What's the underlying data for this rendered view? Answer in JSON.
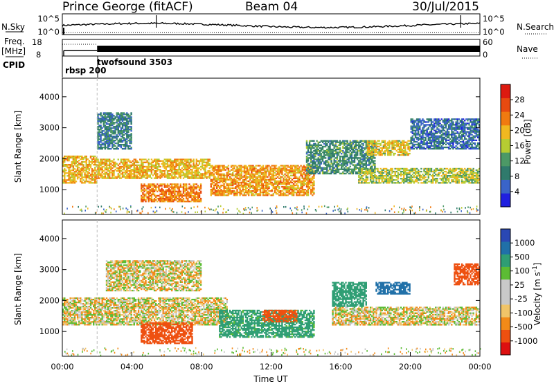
{
  "header": {
    "station": "Prince George (fitACF)",
    "beam": "Beam 04",
    "date": "30/Jul/2015"
  },
  "top_panels": {
    "nsky_label": "N.Sky",
    "nsearch_label": "N.Search",
    "nsky_ticks": [
      "10^5",
      "10^0"
    ],
    "freq_label": "Freq.",
    "freq_unit": "[MHz]",
    "freq_ticks": [
      "18",
      "8"
    ],
    "nave_label": "Nave",
    "nave_ticks": [
      "60",
      "0"
    ],
    "cpid_label": "CPID",
    "cpid_entries": [
      "rbsp 200",
      "twofsound 3503"
    ]
  },
  "colors": {
    "power": [
      "#2020e0",
      "#3a64c8",
      "#2f7a6c",
      "#4c9966",
      "#b6cc32",
      "#f0b820",
      "#f07a10",
      "#e84a10",
      "#dd1a10"
    ],
    "velocity": [
      "#dd1010",
      "#ee5010",
      "#f28a18",
      "#f0c468",
      "#c8c8c8",
      "#c8c8c8",
      "#5cbc34",
      "#2f9e74",
      "#2070a8",
      "#2a48b4"
    ]
  },
  "chart_data": [
    {
      "type": "heatmap",
      "quantity": "power",
      "xlabel": "",
      "ylabel": "Slant Range [km]",
      "ylim": [
        200,
        4600
      ],
      "yticks": [
        "4000",
        "3000",
        "2000",
        "1000"
      ],
      "colorbar_label": "Power [dB]",
      "colorbar_ticks": [
        "28",
        "24",
        "20",
        "16",
        "12",
        "8",
        "4"
      ],
      "colorbar_range": [
        0,
        32
      ],
      "echo_bands": [
        {
          "t0": 0.0,
          "t1": 2.0,
          "r0": 1200,
          "r1": 2100,
          "level": 22
        },
        {
          "t0": 2.0,
          "t1": 8.5,
          "r0": 1350,
          "r1": 2000,
          "level": 22
        },
        {
          "t0": 4.5,
          "t1": 8.0,
          "r0": 600,
          "r1": 1200,
          "level": 26
        },
        {
          "t0": 2.0,
          "t1": 4.0,
          "r0": 2300,
          "r1": 3500,
          "level": 10
        },
        {
          "t0": 8.5,
          "t1": 14.5,
          "r0": 800,
          "r1": 1800,
          "level": 24
        },
        {
          "t0": 14.0,
          "t1": 18.0,
          "r0": 1500,
          "r1": 2600,
          "level": 12
        },
        {
          "t0": 17.5,
          "t1": 20.0,
          "r0": 2100,
          "r1": 2600,
          "level": 20
        },
        {
          "t0": 17.0,
          "t1": 24.0,
          "r0": 1200,
          "r1": 1700,
          "level": 18
        },
        {
          "t0": 20.0,
          "t1": 24.0,
          "r0": 2300,
          "r1": 3300,
          "level": 8
        }
      ]
    },
    {
      "type": "heatmap",
      "quantity": "velocity",
      "xlabel": "Time UT",
      "ylabel": "Slant Range [km]",
      "ylim": [
        200,
        4600
      ],
      "yticks": [
        "4000",
        "3000",
        "2000",
        "1000"
      ],
      "xticks": [
        "00:00",
        "04:00",
        "08:00",
        "12:00",
        "16:00",
        "20:00",
        "00:00"
      ],
      "xlim_hours": [
        0,
        24
      ],
      "colorbar_label": "Velocity [m s^-1]",
      "colorbar_ticks": [
        "1000",
        "500",
        "100",
        "25",
        "-25",
        "-100",
        "-500",
        "-1000"
      ],
      "echo_bands": [
        {
          "t0": 0.0,
          "t1": 9.5,
          "r0": 1200,
          "r1": 2100,
          "level": 0
        },
        {
          "t0": 2.5,
          "t1": 8.0,
          "r0": 2300,
          "r1": 3300,
          "level": 0
        },
        {
          "t0": 4.5,
          "t1": 7.5,
          "r0": 600,
          "r1": 1300,
          "level": -300
        },
        {
          "t0": 9.0,
          "t1": 14.5,
          "r0": 800,
          "r1": 1700,
          "level": 150
        },
        {
          "t0": 11.5,
          "t1": 13.5,
          "r0": 1300,
          "r1": 1700,
          "level": -150
        },
        {
          "t0": 15.5,
          "t1": 24.0,
          "r0": 1200,
          "r1": 1800,
          "level": 0
        },
        {
          "t0": 18.0,
          "t1": 20.0,
          "r0": 2200,
          "r1": 2600,
          "level": 800
        },
        {
          "t0": 15.5,
          "t1": 17.5,
          "r0": 1800,
          "r1": 2600,
          "level": 300
        },
        {
          "t0": 22.5,
          "t1": 24.0,
          "r0": 2500,
          "r1": 3200,
          "level": -300
        }
      ]
    }
  ]
}
